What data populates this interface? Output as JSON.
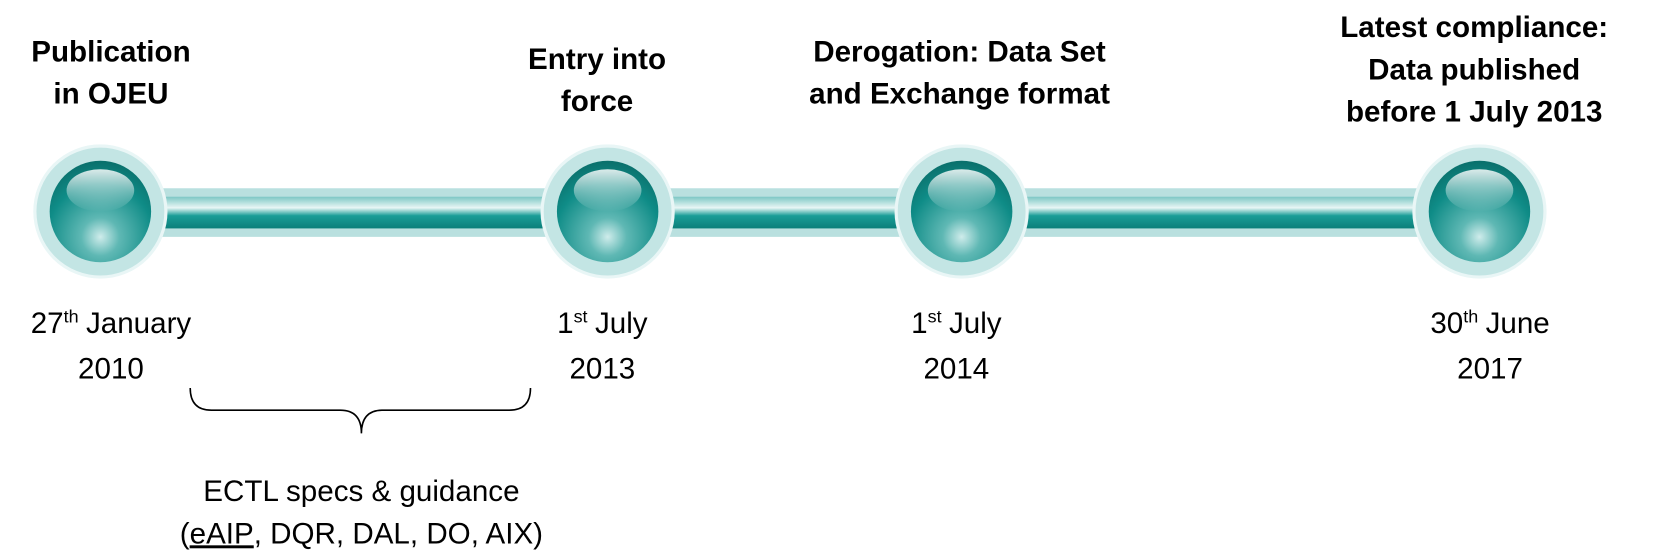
{
  "milestones": [
    {
      "title": [
        "Publication",
        "in OJEU"
      ],
      "date": {
        "day": "27",
        "ordinal": "th",
        "month": "January",
        "year": "2010"
      }
    },
    {
      "title": [
        "Entry into",
        "force"
      ],
      "date": {
        "day": "1",
        "ordinal": "st",
        "month": "July",
        "year": "2013"
      }
    },
    {
      "title": [
        "Derogation: Data Set",
        "and Exchange format"
      ],
      "date": {
        "day": "1",
        "ordinal": "st",
        "month": "July",
        "year": "2014"
      }
    },
    {
      "title": [
        "Latest compliance:",
        "Data published",
        "before 1 July 2013"
      ],
      "date": {
        "day": "30",
        "ordinal": "th",
        "month": "June",
        "year": "2017"
      }
    }
  ],
  "note": {
    "line1": "ECTL specs & guidance",
    "line2": {
      "open": "(",
      "underlined": "eAIP",
      "rest": ", DQR, DAL, DO, AIX)"
    }
  }
}
